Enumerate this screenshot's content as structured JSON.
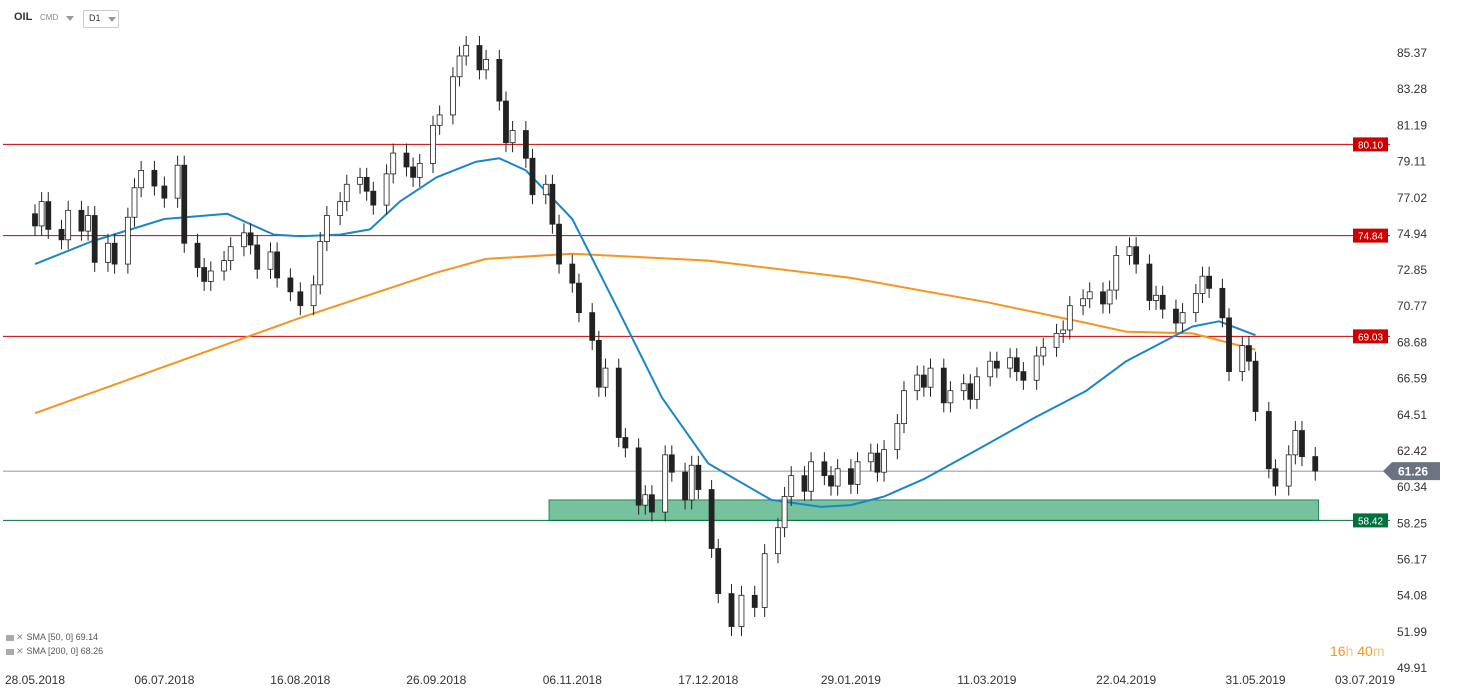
{
  "header": {
    "symbol": "OIL",
    "type": "CMD",
    "timeframe": "D1"
  },
  "countdown": {
    "hours": "16",
    "h_unit": "h",
    "minutes": "40",
    "m_unit": "m"
  },
  "colors": {
    "resistance": "#cc0000",
    "support": "#00703c",
    "zone_fill": "#5fb88f",
    "sma50": "#1a86c8",
    "sma200": "#f7941d",
    "current_price": "#6b7280",
    "candle_up": "#ffffff",
    "candle_down": "#222222"
  },
  "chart_data": {
    "type": "candlestick",
    "instrument": "OIL",
    "timeframe": "D1",
    "y_axis": {
      "ticks": [
        85.37,
        83.28,
        81.19,
        79.11,
        77.02,
        74.94,
        72.85,
        70.77,
        68.68,
        66.59,
        64.51,
        62.42,
        60.34,
        58.25,
        56.17,
        54.08,
        51.99,
        49.91
      ]
    },
    "x_axis": {
      "ticks": [
        "28.05.2018",
        "06.07.2018",
        "16.08.2018",
        "26.09.2018",
        "06.11.2018",
        "17.12.2018",
        "29.01.2019",
        "11.03.2019",
        "22.04.2019",
        "31.05.2019",
        "03.07.2019"
      ]
    },
    "horizontal_levels": [
      {
        "value": 80.1,
        "label": "80.10",
        "kind": "resistance"
      },
      {
        "value": 74.84,
        "label": "74.84",
        "kind": "resistance"
      },
      {
        "value": 69.03,
        "label": "69.03",
        "kind": "resistance"
      },
      {
        "value": 58.42,
        "label": "58.42",
        "kind": "support"
      }
    ],
    "current_price": {
      "value": 61.26,
      "label": "61.26"
    },
    "support_zone": {
      "y_low": 58.42,
      "y_high": 59.6,
      "x_start": "30.10.2018",
      "x_end": "19.06.2019"
    },
    "sma_legend": [
      {
        "label": "SMA [50, 0] 69.14",
        "period": 50,
        "value": 69.14
      },
      {
        "label": "SMA [200, 0] 68.26",
        "period": 200,
        "value": 68.26
      }
    ],
    "sma50": [
      [
        "28.05.2018",
        73.2
      ],
      [
        "14.06.2018",
        74.5
      ],
      [
        "06.07.2018",
        75.8
      ],
      [
        "25.07.2018",
        76.1
      ],
      [
        "08.08.2018",
        74.9
      ],
      [
        "16.08.2018",
        74.8
      ],
      [
        "28.08.2018",
        74.9
      ],
      [
        "06.09.2018",
        75.2
      ],
      [
        "15.09.2018",
        76.8
      ],
      [
        "26.09.2018",
        78.2
      ],
      [
        "08.10.2018",
        79.1
      ],
      [
        "15.10.2018",
        79.3
      ],
      [
        "23.10.2018",
        78.6
      ],
      [
        "06.11.2018",
        75.8
      ],
      [
        "20.11.2018",
        70.5
      ],
      [
        "03.12.2018",
        65.5
      ],
      [
        "17.12.2018",
        61.7
      ],
      [
        "05.01.2019",
        59.6
      ],
      [
        "20.01.2019",
        59.2
      ],
      [
        "29.01.2019",
        59.3
      ],
      [
        "08.02.2019",
        59.8
      ],
      [
        "20.02.2019",
        60.8
      ],
      [
        "11.03.2019",
        62.8
      ],
      [
        "25.03.2019",
        64.3
      ],
      [
        "10.04.2019",
        65.9
      ],
      [
        "22.04.2019",
        67.6
      ],
      [
        "02.05.2019",
        68.6
      ],
      [
        "12.05.2019",
        69.6
      ],
      [
        "20.05.2019",
        69.9
      ],
      [
        "31.05.2019",
        69.1
      ]
    ],
    "sma200": [
      [
        "28.05.2018",
        64.6
      ],
      [
        "16.08.2018",
        70.1
      ],
      [
        "26.09.2018",
        72.7
      ],
      [
        "11.10.2018",
        73.5
      ],
      [
        "06.11.2018",
        73.8
      ],
      [
        "17.12.2018",
        73.4
      ],
      [
        "29.01.2019",
        72.4
      ],
      [
        "11.03.2019",
        71.0
      ],
      [
        "10.04.2019",
        69.8
      ],
      [
        "22.04.2019",
        69.3
      ],
      [
        "12.05.2019",
        69.2
      ],
      [
        "31.05.2019",
        68.26
      ]
    ],
    "candles": [
      [
        "28.05.2018",
        76.1,
        75.4
      ],
      [
        "30.05.2018",
        75.4,
        76.8
      ],
      [
        "01.06.2018",
        76.8,
        75.2
      ],
      [
        "05.06.2018",
        75.2,
        74.6
      ],
      [
        "07.06.2018",
        74.6,
        76.3
      ],
      [
        "11.06.2018",
        76.3,
        75.1
      ],
      [
        "13.06.2018",
        75.1,
        76.0
      ],
      [
        "15.06.2018",
        76.0,
        73.3
      ],
      [
        "19.06.2018",
        73.3,
        74.4
      ],
      [
        "21.06.2018",
        74.4,
        73.2
      ],
      [
        "25.06.2018",
        73.2,
        75.9
      ],
      [
        "27.06.2018",
        75.9,
        77.6
      ],
      [
        "29.06.2018",
        77.6,
        78.6
      ],
      [
        "03.07.2018",
        78.6,
        77.7
      ],
      [
        "06.07.2018",
        77.7,
        77.0
      ],
      [
        "10.07.2018",
        77.0,
        78.9
      ],
      [
        "12.07.2018",
        78.9,
        74.4
      ],
      [
        "16.07.2018",
        74.4,
        73.0
      ],
      [
        "18.07.2018",
        73.0,
        72.2
      ],
      [
        "20.07.2018",
        72.2,
        72.8
      ],
      [
        "24.07.2018",
        72.8,
        73.4
      ],
      [
        "26.07.2018",
        73.4,
        74.2
      ],
      [
        "30.07.2018",
        74.2,
        75.0
      ],
      [
        "01.08.2018",
        75.0,
        74.3
      ],
      [
        "03.08.2018",
        74.3,
        72.9
      ],
      [
        "07.08.2018",
        72.9,
        73.9
      ],
      [
        "09.08.2018",
        73.9,
        72.4
      ],
      [
        "13.08.2018",
        72.4,
        71.6
      ],
      [
        "16.08.2018",
        71.6,
        70.8
      ],
      [
        "20.08.2018",
        70.8,
        72.0
      ],
      [
        "22.08.2018",
        72.0,
        74.5
      ],
      [
        "24.08.2018",
        74.5,
        76.0
      ],
      [
        "28.08.2018",
        76.0,
        76.8
      ],
      [
        "30.08.2018",
        76.8,
        77.8
      ],
      [
        "03.09.2018",
        77.8,
        78.2
      ],
      [
        "05.09.2018",
        78.2,
        77.4
      ],
      [
        "07.09.2018",
        77.4,
        76.6
      ],
      [
        "11.09.2018",
        76.6,
        78.4
      ],
      [
        "13.09.2018",
        78.4,
        79.6
      ],
      [
        "17.09.2018",
        79.6,
        78.8
      ],
      [
        "19.09.2018",
        78.8,
        78.2
      ],
      [
        "21.09.2018",
        78.2,
        79.0
      ],
      [
        "25.09.2018",
        79.0,
        81.2
      ],
      [
        "27.09.2018",
        81.2,
        81.8
      ],
      [
        "01.10.2018",
        81.8,
        84.0
      ],
      [
        "03.10.2018",
        84.0,
        85.2
      ],
      [
        "05.10.2018",
        85.2,
        85.8
      ],
      [
        "09.10.2018",
        85.8,
        84.4
      ],
      [
        "11.10.2018",
        84.4,
        85.0
      ],
      [
        "15.10.2018",
        85.0,
        82.6
      ],
      [
        "17.10.2018",
        82.6,
        80.2
      ],
      [
        "19.10.2018",
        80.2,
        80.9
      ],
      [
        "23.10.2018",
        80.9,
        79.3
      ],
      [
        "25.10.2018",
        79.3,
        77.2
      ],
      [
        "29.10.2018",
        77.2,
        77.8
      ],
      [
        "31.10.2018",
        77.8,
        75.5
      ],
      [
        "02.11.2018",
        75.5,
        73.2
      ],
      [
        "06.11.2018",
        73.2,
        72.1
      ],
      [
        "08.11.2018",
        72.1,
        70.4
      ],
      [
        "12.11.2018",
        70.4,
        68.8
      ],
      [
        "14.11.2018",
        68.8,
        66.1
      ],
      [
        "16.11.2018",
        66.1,
        67.2
      ],
      [
        "20.11.2018",
        67.2,
        63.2
      ],
      [
        "22.11.2018",
        63.2,
        62.6
      ],
      [
        "26.11.2018",
        62.6,
        59.3
      ],
      [
        "28.11.2018",
        59.3,
        59.9
      ],
      [
        "30.11.2018",
        59.9,
        58.9
      ],
      [
        "04.12.2018",
        58.9,
        62.2
      ],
      [
        "06.12.2018",
        62.2,
        61.2
      ],
      [
        "10.12.2018",
        61.2,
        59.6
      ],
      [
        "12.12.2018",
        59.6,
        61.6
      ],
      [
        "14.12.2018",
        61.6,
        60.2
      ],
      [
        "18.12.2018",
        60.2,
        56.8
      ],
      [
        "20.12.2018",
        56.8,
        54.2
      ],
      [
        "24.12.2018",
        54.2,
        52.3
      ],
      [
        "27.12.2018",
        52.3,
        54.1
      ],
      [
        "31.12.2018",
        54.1,
        53.4
      ],
      [
        "03.01.2019",
        53.4,
        56.5
      ],
      [
        "07.01.2019",
        56.5,
        58.0
      ],
      [
        "09.01.2019",
        58.0,
        59.8
      ],
      [
        "11.01.2019",
        59.8,
        61.0
      ],
      [
        "15.01.2019",
        61.0,
        60.1
      ],
      [
        "17.01.2019",
        60.1,
        61.8
      ],
      [
        "21.01.2019",
        61.8,
        61.0
      ],
      [
        "23.01.2019",
        61.0,
        60.4
      ],
      [
        "25.01.2019",
        60.4,
        61.4
      ],
      [
        "29.01.2019",
        61.4,
        60.5
      ],
      [
        "31.01.2019",
        60.5,
        61.8
      ],
      [
        "04.02.2019",
        61.8,
        62.3
      ],
      [
        "06.02.2019",
        62.3,
        61.2
      ],
      [
        "08.02.2019",
        61.2,
        62.5
      ],
      [
        "12.02.2019",
        62.5,
        64.0
      ],
      [
        "14.02.2019",
        64.0,
        65.9
      ],
      [
        "18.02.2019",
        65.9,
        66.8
      ],
      [
        "20.02.2019",
        66.8,
        66.1
      ],
      [
        "22.02.2019",
        66.1,
        67.2
      ],
      [
        "26.02.2019",
        67.2,
        65.2
      ],
      [
        "28.02.2019",
        65.2,
        65.9
      ],
      [
        "04.03.2019",
        65.9,
        66.3
      ],
      [
        "06.03.2019",
        66.3,
        65.4
      ],
      [
        "08.03.2019",
        65.4,
        66.7
      ],
      [
        "12.03.2019",
        66.7,
        67.6
      ],
      [
        "14.03.2019",
        67.6,
        67.2
      ],
      [
        "18.03.2019",
        67.2,
        67.8
      ],
      [
        "20.03.2019",
        67.8,
        67.0
      ],
      [
        "22.03.2019",
        67.0,
        66.5
      ],
      [
        "26.03.2019",
        66.5,
        67.9
      ],
      [
        "28.03.2019",
        67.9,
        68.4
      ],
      [
        "01.04.2019",
        68.4,
        69.2
      ],
      [
        "03.04.2019",
        69.2,
        69.4
      ],
      [
        "05.04.2019",
        69.4,
        70.8
      ],
      [
        "09.04.2019",
        70.8,
        71.2
      ],
      [
        "11.04.2019",
        71.2,
        71.6
      ],
      [
        "15.04.2019",
        71.6,
        70.9
      ],
      [
        "17.04.2019",
        70.9,
        71.7
      ],
      [
        "19.04.2019",
        71.7,
        73.7
      ],
      [
        "23.04.2019",
        73.7,
        74.2
      ],
      [
        "25.04.2019",
        74.2,
        73.2
      ],
      [
        "29.04.2019",
        73.2,
        71.1
      ],
      [
        "01.05.2019",
        71.1,
        71.4
      ],
      [
        "03.05.2019",
        71.4,
        70.6
      ],
      [
        "07.05.2019",
        70.6,
        69.8
      ],
      [
        "09.05.2019",
        69.8,
        70.4
      ],
      [
        "13.05.2019",
        70.4,
        71.5
      ],
      [
        "15.05.2019",
        71.5,
        72.5
      ],
      [
        "17.05.2019",
        72.5,
        71.8
      ],
      [
        "21.05.2019",
        71.8,
        70.1
      ],
      [
        "23.05.2019",
        70.1,
        67.0
      ],
      [
        "27.05.2019",
        67.0,
        68.5
      ],
      [
        "29.05.2019",
        68.5,
        67.6
      ],
      [
        "31.05.2019",
        67.6,
        64.7
      ],
      [
        "04.06.2019",
        64.7,
        61.4
      ],
      [
        "06.06.2019",
        61.4,
        60.4
      ],
      [
        "10.06.2019",
        60.4,
        62.2
      ],
      [
        "12.06.2019",
        62.2,
        63.6
      ],
      [
        "14.06.2019",
        63.6,
        62.1
      ],
      [
        "18.06.2019",
        62.1,
        61.26
      ]
    ]
  }
}
